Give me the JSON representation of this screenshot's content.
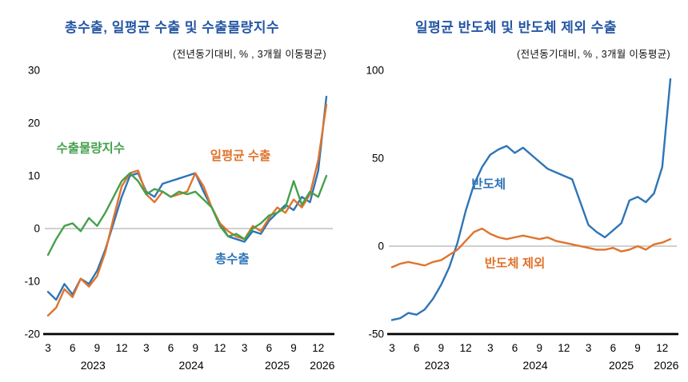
{
  "style": {
    "title_color": "#2456A4",
    "axis_color": "#000000",
    "zero_line_color": "#b3b3b3",
    "background": "#ffffff"
  },
  "chart_data": [
    {
      "type": "line",
      "title": "총수출, 일평균 수출 및 수출물량지수",
      "subtitle": "(전년동기대비, % , 3개월 이동평균)",
      "x_unit": "month",
      "x_start": "2023-03",
      "x_end": "2026-01",
      "ylim": [
        -20,
        30
      ],
      "yticks": [
        -20,
        -10,
        0,
        10,
        20,
        30
      ],
      "zero_line": true,
      "grid": false,
      "legend_position": "inline-annotations",
      "x_ticks": [
        {
          "i": 0,
          "label": "3"
        },
        {
          "i": 3,
          "label": "6"
        },
        {
          "i": 6,
          "label": "9"
        },
        {
          "i": 9,
          "label": "12"
        },
        {
          "i": 12,
          "label": "3"
        },
        {
          "i": 15,
          "label": "6"
        },
        {
          "i": 18,
          "label": "9"
        },
        {
          "i": 21,
          "label": "12"
        },
        {
          "i": 24,
          "label": "3"
        },
        {
          "i": 27,
          "label": "6"
        },
        {
          "i": 30,
          "label": "9"
        },
        {
          "i": 33,
          "label": "12"
        }
      ],
      "year_labels": [
        {
          "i": 5.5,
          "label": "2023"
        },
        {
          "i": 17.5,
          "label": "2024"
        },
        {
          "i": 28,
          "label": "2025"
        },
        {
          "i": 33.5,
          "label": "2026"
        }
      ],
      "series": [
        {
          "name": "총수출",
          "color": "#2E75B6",
          "values": [
            -12,
            -13.5,
            -10.5,
            -12.5,
            -9.5,
            -10.5,
            -8,
            -4,
            1,
            6,
            10,
            10.5,
            7,
            6,
            8.5,
            9,
            9.5,
            10,
            10.5,
            7,
            4,
            1,
            -1.5,
            -2,
            -2.5,
            -0.5,
            -1,
            1.5,
            3,
            4.5,
            3.5,
            6,
            5,
            11,
            25
          ]
        },
        {
          "name": "일평균 수출",
          "color": "#E0732C",
          "values": [
            -16.5,
            -15,
            -11.5,
            -13,
            -9.5,
            -11,
            -9,
            -4.5,
            2,
            8,
            10.5,
            11,
            6.5,
            5,
            7,
            6,
            6.5,
            7,
            10.5,
            8,
            4,
            1,
            -0.5,
            -1.5,
            -2,
            0.5,
            -0.5,
            2,
            4,
            3,
            5.5,
            4,
            6.5,
            13,
            23.5
          ]
        },
        {
          "name": "수출물량지수",
          "color": "#45A04B",
          "values": [
            -5,
            -2,
            0.5,
            1,
            -0.5,
            2,
            0.5,
            3,
            6,
            9,
            10.5,
            9,
            6.5,
            7.5,
            7,
            6,
            7,
            6.5,
            7,
            5.5,
            4,
            0.5,
            -1.5,
            -1,
            -2,
            0,
            1,
            2.5,
            3,
            4,
            9,
            4.5,
            7,
            6,
            10
          ]
        }
      ],
      "annotations": [
        {
          "text": "수출물량지수",
          "x": 5.2,
          "y": 14.5,
          "color": "#45A04B"
        },
        {
          "text": "일평균 수출",
          "x": 23.5,
          "y": 13,
          "color": "#E0732C"
        },
        {
          "text": "총수출",
          "x": 22.5,
          "y": -6.5,
          "color": "#2E75B6"
        }
      ]
    },
    {
      "type": "line",
      "title": "일평균 반도체 및 반도체 제외 수출",
      "subtitle": "(전년동기대비, % , 3개월 이동평균)",
      "x_unit": "month",
      "x_start": "2023-03",
      "x_end": "2026-01",
      "ylim": [
        -50,
        100
      ],
      "yticks": [
        -50,
        0,
        50,
        100
      ],
      "zero_line": true,
      "grid": false,
      "legend_position": "inline-annotations",
      "x_ticks": [
        {
          "i": 0,
          "label": "3"
        },
        {
          "i": 3,
          "label": "6"
        },
        {
          "i": 6,
          "label": "9"
        },
        {
          "i": 9,
          "label": "12"
        },
        {
          "i": 12,
          "label": "3"
        },
        {
          "i": 15,
          "label": "6"
        },
        {
          "i": 18,
          "label": "9"
        },
        {
          "i": 21,
          "label": "12"
        },
        {
          "i": 24,
          "label": "3"
        },
        {
          "i": 27,
          "label": "6"
        },
        {
          "i": 30,
          "label": "9"
        },
        {
          "i": 33,
          "label": "12"
        }
      ],
      "year_labels": [
        {
          "i": 5.5,
          "label": "2023"
        },
        {
          "i": 17.5,
          "label": "2024"
        },
        {
          "i": 28,
          "label": "2025"
        },
        {
          "i": 33.5,
          "label": "2026"
        }
      ],
      "series": [
        {
          "name": "반도체",
          "color": "#2E75B6",
          "values": [
            -42,
            -41,
            -38,
            -39,
            -36,
            -30,
            -22,
            -12,
            2,
            20,
            35,
            45,
            52,
            55,
            57,
            53,
            56,
            52,
            48,
            44,
            42,
            40,
            38,
            25,
            12,
            8,
            5,
            9,
            13,
            26,
            28,
            25,
            30,
            45,
            95
          ]
        },
        {
          "name": "반도체 제외",
          "color": "#E0732C",
          "values": [
            -12,
            -10,
            -9,
            -10,
            -11,
            -9,
            -8,
            -5,
            -2,
            3,
            8,
            10,
            7,
            5,
            4,
            5,
            6,
            5,
            4,
            5,
            3,
            2,
            1,
            0,
            -1,
            -2,
            -2,
            -1,
            -3,
            -2,
            0,
            -2,
            1,
            2,
            4
          ]
        }
      ],
      "annotations": [
        {
          "text": "반도체",
          "x": 11.8,
          "y": 33,
          "color": "#2E75B6"
        },
        {
          "text": "반도체 제외",
          "x": 15,
          "y": -12,
          "color": "#E0732C"
        }
      ]
    }
  ]
}
